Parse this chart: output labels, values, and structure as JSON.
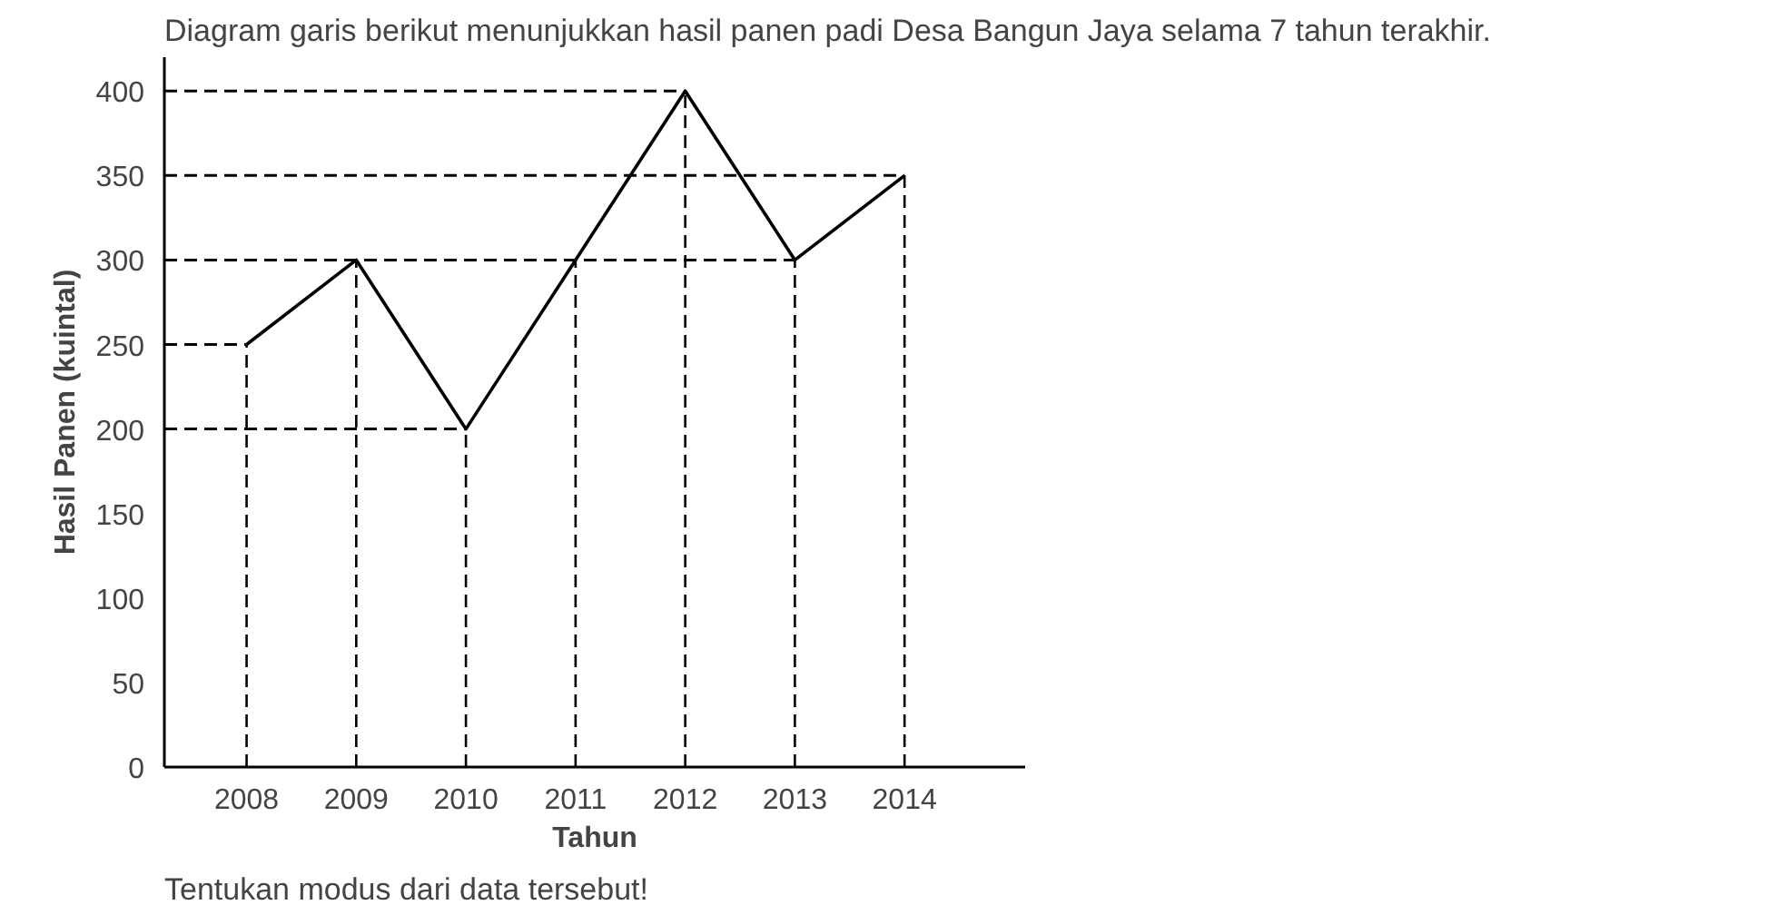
{
  "chart_data": {
    "type": "line",
    "title": "Diagram garis berikut menunjukkan hasil panen padi Desa Bangun Jaya selama 7 tahun terakhir.",
    "xlabel": "Tahun",
    "ylabel": "Hasil Panen (kuintal)",
    "categories": [
      "2008",
      "2009",
      "2010",
      "2011",
      "2012",
      "2013",
      "2014"
    ],
    "series": [
      {
        "color": "#000000",
        "values": [
          250,
          300,
          200,
          300,
          400,
          300,
          350
        ]
      }
    ],
    "ylim": [
      0,
      420
    ],
    "yticks": [
      0,
      50,
      100,
      150,
      200,
      250,
      300,
      350,
      400
    ],
    "grid": false,
    "marker": "none",
    "line_style": "solid",
    "ref_lines": [
      {
        "axis": "y",
        "value": 200,
        "line_style": "dashed"
      },
      {
        "axis": "y",
        "value": 250,
        "line_style": "dashed"
      },
      {
        "axis": "y",
        "value": 300,
        "line_style": "dashed"
      },
      {
        "axis": "y",
        "value": 350,
        "line_style": "dashed"
      },
      {
        "axis": "y",
        "value": 400,
        "line_style": "dashed"
      },
      {
        "axis": "x",
        "value": "2008",
        "line_style": "dashed"
      },
      {
        "axis": "x",
        "value": "2009",
        "line_style": "dashed"
      },
      {
        "axis": "x",
        "value": "2010",
        "line_style": "dashed"
      },
      {
        "axis": "x",
        "value": "2011",
        "line_style": "dashed"
      },
      {
        "axis": "x",
        "value": "2012",
        "line_style": "dashed"
      },
      {
        "axis": "x",
        "value": "2013",
        "line_style": "dashed"
      },
      {
        "axis": "x",
        "value": "2014",
        "line_style": "dashed"
      }
    ],
    "annotations": [
      "Tentukan modus dari data tersebut!"
    ]
  }
}
